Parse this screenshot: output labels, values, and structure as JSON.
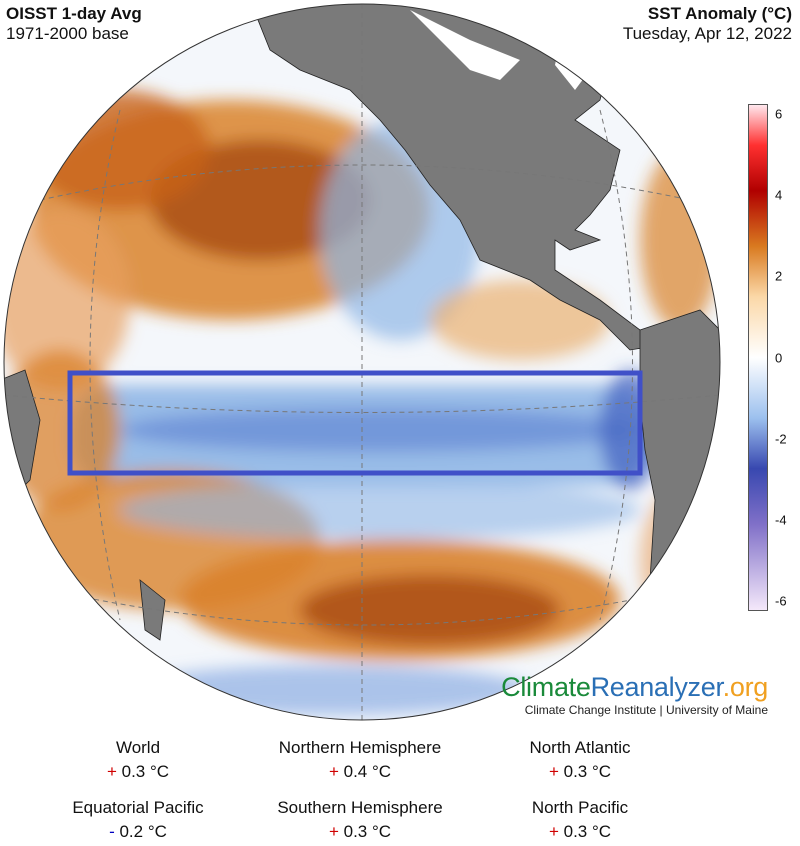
{
  "header": {
    "title": "OISST 1-day Avg",
    "subtitle": "1971-2000 base",
    "right_title": "SST Anomaly (°C)",
    "date": "Tuesday, Apr 12, 2022"
  },
  "colors": {
    "ocean_neutral": "#f4f7fb",
    "warm": "#d9822b",
    "cool": "#8fb6e6",
    "land": "#7a7a7a",
    "region_box": "#4050c8"
  },
  "colorbar": {
    "ticks": [
      "6",
      "4",
      "2",
      "0",
      "-2",
      "-4",
      "-6"
    ],
    "range": [
      -6,
      6
    ]
  },
  "branding": {
    "part1": "Climate",
    "part2": "Reanalyzer",
    "part3": ".org",
    "sub": "Climate Change Institute | University of Maine"
  },
  "stats": [
    {
      "label": "World",
      "sign": "+",
      "value": "0.3 °C"
    },
    {
      "label": "Northern Hemisphere",
      "sign": "+",
      "value": "0.4 °C"
    },
    {
      "label": "North Atlantic",
      "sign": "+",
      "value": "0.3 °C"
    },
    {
      "label": "Equatorial Pacific",
      "sign": "-",
      "value": "0.2 °C"
    },
    {
      "label": "Southern Hemisphere",
      "sign": "+",
      "value": "0.3 °C"
    },
    {
      "label": "North Pacific",
      "sign": "+",
      "value": "0.3 °C"
    }
  ]
}
